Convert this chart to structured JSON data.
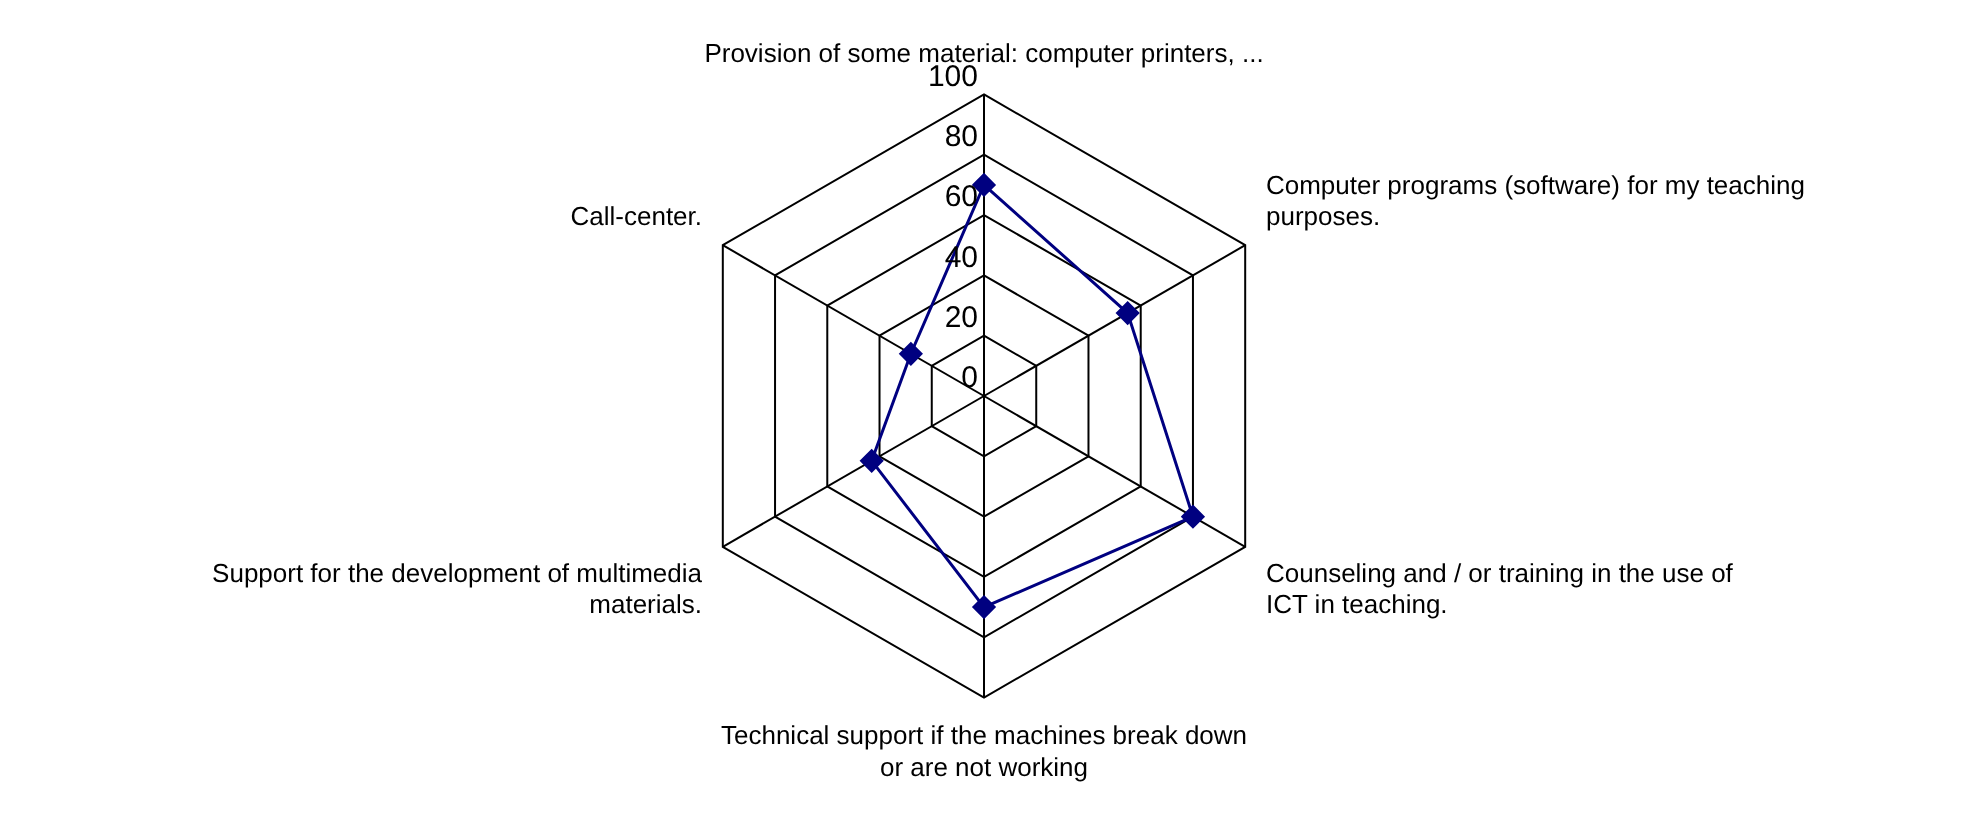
{
  "chart_data": {
    "type": "radar",
    "categories": [
      "Provision of some material: computer printers, ...",
      "Computer programs (software) for my teaching purposes.",
      "Counseling and / or training in the use of ICT in teaching.",
      "Technical support if the machines break down or are not working",
      "Support for the development of multimedia materials.",
      "Call-center."
    ],
    "series": [
      {
        "color": "#000080",
        "values": [
          70,
          55,
          80,
          70,
          43,
          28
        ]
      }
    ],
    "ylim": [
      0,
      100
    ],
    "yticks": [
      0,
      20,
      40,
      60,
      80,
      100
    ],
    "grid": true,
    "marker": "diamond",
    "legend": false
  }
}
